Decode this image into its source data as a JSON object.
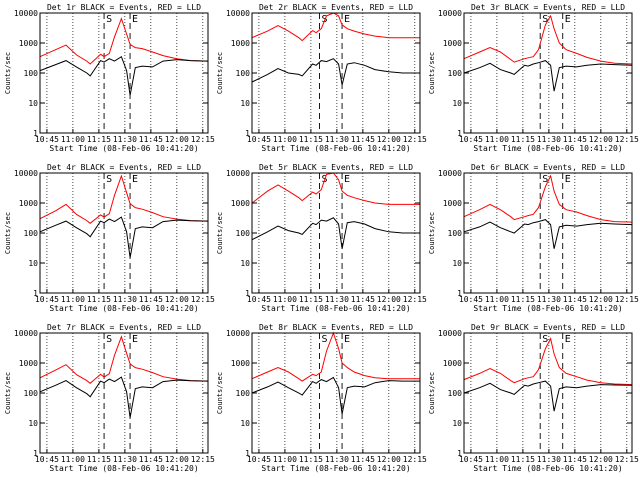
{
  "xlabel": "Start Time (08-Feb-06 10:41:20)",
  "ylabel": "Counts/sec",
  "x_ticks": [
    "10:45",
    "11:00",
    "11:15",
    "11:30",
    "11:45",
    "12:00",
    "12:15"
  ],
  "y_ticks": [
    "1",
    "10",
    "100",
    "1000",
    "10000"
  ],
  "marker_s": "S",
  "marker_e": "E",
  "colors": {
    "events": "#000000",
    "lld": "#ff0000"
  },
  "chart_data": [
    {
      "type": "line",
      "title": "Det 1r BLACK = Events, RED = LLD",
      "xlim": [
        "10:41",
        "12:18"
      ],
      "ylim": [
        1,
        10000
      ],
      "yscale": "log",
      "grid": "dotted-vertical",
      "s_time": "11:18",
      "e_time": "11:33",
      "x": [
        "10:41",
        "10:50",
        "10:56",
        "11:02",
        "11:08",
        "11:10",
        "11:16",
        "11:18",
        "11:21",
        "11:24",
        "11:28",
        "11:31",
        "11:33",
        "11:36",
        "11:40",
        "11:46",
        "11:52",
        "12:00",
        "12:08",
        "12:18"
      ],
      "series": [
        {
          "name": "LLD",
          "values": [
            350,
            600,
            850,
            400,
            250,
            200,
            420,
            350,
            450,
            1600,
            6500,
            2000,
            900,
            700,
            650,
            500,
            380,
            300,
            260,
            250
          ]
        },
        {
          "name": "Events",
          "values": [
            120,
            190,
            260,
            160,
            100,
            80,
            260,
            230,
            300,
            250,
            350,
            120,
            18,
            150,
            170,
            160,
            250,
            280,
            260,
            250
          ]
        }
      ]
    },
    {
      "type": "line",
      "title": "Det 2r BLACK = Events, RED = LLD",
      "xlim": [
        "10:41",
        "12:18"
      ],
      "ylim": [
        1,
        10000
      ],
      "yscale": "log",
      "grid": "dotted-vertical",
      "s_time": "11:20",
      "e_time": "11:33",
      "x": [
        "10:41",
        "10:50",
        "10:56",
        "11:02",
        "11:08",
        "11:10",
        "11:16",
        "11:18",
        "11:21",
        "11:24",
        "11:28",
        "11:31",
        "11:33",
        "11:36",
        "11:40",
        "11:46",
        "11:52",
        "12:00",
        "12:08",
        "12:18"
      ],
      "series": [
        {
          "name": "LLD",
          "values": [
            1500,
            2500,
            3800,
            2500,
            1500,
            1200,
            2600,
            2200,
            3000,
            8000,
            10000,
            8000,
            4000,
            3000,
            2500,
            2000,
            1700,
            1500,
            1500,
            1500
          ]
        },
        {
          "name": "Events",
          "values": [
            50,
            90,
            140,
            100,
            90,
            80,
            200,
            180,
            260,
            240,
            300,
            200,
            40,
            200,
            220,
            180,
            130,
            110,
            100,
            100
          ]
        }
      ]
    },
    {
      "type": "line",
      "title": "Det 3r BLACK = Events, RED = LLD",
      "xlim": [
        "10:41",
        "12:18"
      ],
      "ylim": [
        1,
        10000
      ],
      "yscale": "log",
      "grid": "dotted-vertical",
      "s_time": "11:25",
      "e_time": "11:38",
      "x": [
        "10:41",
        "10:50",
        "10:56",
        "11:02",
        "11:08",
        "11:10",
        "11:16",
        "11:18",
        "11:21",
        "11:24",
        "11:28",
        "11:31",
        "11:33",
        "11:36",
        "11:40",
        "11:46",
        "11:52",
        "12:00",
        "12:08",
        "12:18"
      ],
      "series": [
        {
          "name": "LLD",
          "values": [
            300,
            500,
            700,
            500,
            280,
            230,
            300,
            320,
            350,
            600,
            4000,
            8000,
            3000,
            1000,
            600,
            450,
            330,
            250,
            210,
            200
          ]
        },
        {
          "name": "Events",
          "values": [
            100,
            150,
            210,
            130,
            100,
            90,
            180,
            170,
            200,
            220,
            260,
            180,
            25,
            150,
            170,
            160,
            180,
            200,
            190,
            180
          ]
        }
      ]
    },
    {
      "type": "line",
      "title": "Det 4r BLACK = Events, RED = LLD",
      "xlim": [
        "10:41",
        "12:18"
      ],
      "ylim": [
        1,
        10000
      ],
      "yscale": "log",
      "grid": "dotted-vertical",
      "s_time": "11:18",
      "e_time": "11:33",
      "x": [
        "10:41",
        "10:50",
        "10:56",
        "11:02",
        "11:08",
        "11:10",
        "11:16",
        "11:18",
        "11:21",
        "11:24",
        "11:28",
        "11:31",
        "11:33",
        "11:36",
        "11:40",
        "11:46",
        "11:52",
        "12:00",
        "12:08",
        "12:18"
      ],
      "series": [
        {
          "name": "LLD",
          "values": [
            300,
            550,
            900,
            420,
            260,
            210,
            400,
            340,
            440,
            1800,
            8000,
            2200,
            950,
            700,
            620,
            480,
            350,
            290,
            260,
            250
          ]
        },
        {
          "name": "Events",
          "values": [
            110,
            180,
            250,
            150,
            95,
            75,
            250,
            220,
            290,
            240,
            340,
            110,
            15,
            140,
            160,
            150,
            240,
            270,
            255,
            250
          ]
        }
      ]
    },
    {
      "type": "line",
      "title": "Det 5r BLACK = Events, RED = LLD",
      "xlim": [
        "10:41",
        "12:18"
      ],
      "ylim": [
        1,
        10000
      ],
      "yscale": "log",
      "grid": "dotted-vertical",
      "s_time": "11:20",
      "e_time": "11:33",
      "x": [
        "10:41",
        "10:50",
        "10:56",
        "11:02",
        "11:08",
        "11:10",
        "11:16",
        "11:18",
        "11:21",
        "11:24",
        "11:28",
        "11:31",
        "11:33",
        "11:36",
        "11:40",
        "11:46",
        "11:52",
        "12:00",
        "12:08",
        "12:18"
      ],
      "series": [
        {
          "name": "LLD",
          "values": [
            1000,
            2500,
            4000,
            2500,
            1500,
            1200,
            2300,
            2000,
            2800,
            9000,
            10000,
            6000,
            2500,
            1800,
            1500,
            1200,
            1000,
            900,
            900,
            900
          ]
        },
        {
          "name": "Events",
          "values": [
            60,
            110,
            170,
            120,
            100,
            90,
            210,
            190,
            270,
            250,
            320,
            200,
            30,
            220,
            240,
            200,
            140,
            110,
            100,
            100
          ]
        }
      ]
    },
    {
      "type": "line",
      "title": "Det 6r BLACK = Events, RED = LLD",
      "xlim": [
        "10:41",
        "12:18"
      ],
      "ylim": [
        1,
        10000
      ],
      "yscale": "log",
      "grid": "dotted-vertical",
      "s_time": "11:25",
      "e_time": "11:38",
      "x": [
        "10:41",
        "10:50",
        "10:56",
        "11:02",
        "11:08",
        "11:10",
        "11:16",
        "11:18",
        "11:21",
        "11:24",
        "11:28",
        "11:31",
        "11:33",
        "11:36",
        "11:40",
        "11:46",
        "11:52",
        "12:00",
        "12:08",
        "12:18"
      ],
      "series": [
        {
          "name": "LLD",
          "values": [
            350,
            600,
            900,
            600,
            350,
            280,
            350,
            380,
            420,
            700,
            3500,
            8000,
            2500,
            900,
            600,
            500,
            380,
            280,
            240,
            230
          ]
        },
        {
          "name": "Events",
          "values": [
            110,
            160,
            230,
            150,
            110,
            100,
            200,
            190,
            220,
            240,
            280,
            190,
            30,
            160,
            180,
            170,
            190,
            210,
            200,
            190
          ]
        }
      ]
    },
    {
      "type": "line",
      "title": "Det 7r BLACK = Events, RED = LLD",
      "xlim": [
        "10:41",
        "12:18"
      ],
      "ylim": [
        1,
        10000
      ],
      "yscale": "log",
      "grid": "dotted-vertical",
      "s_time": "11:18",
      "e_time": "11:33",
      "x": [
        "10:41",
        "10:50",
        "10:56",
        "11:02",
        "11:08",
        "11:10",
        "11:16",
        "11:18",
        "11:21",
        "11:24",
        "11:28",
        "11:31",
        "11:33",
        "11:36",
        "11:40",
        "11:46",
        "11:52",
        "12:00",
        "12:08",
        "12:18"
      ],
      "series": [
        {
          "name": "LLD",
          "values": [
            320,
            580,
            880,
            410,
            260,
            210,
            420,
            340,
            440,
            1800,
            7500,
            2100,
            930,
            700,
            620,
            480,
            350,
            290,
            260,
            250
          ]
        },
        {
          "name": "Events",
          "values": [
            110,
            180,
            260,
            150,
            95,
            75,
            250,
            220,
            290,
            240,
            340,
            110,
            15,
            140,
            160,
            150,
            240,
            270,
            255,
            250
          ]
        }
      ]
    },
    {
      "type": "line",
      "title": "Det 8r BLACK = Events, RED = LLD",
      "xlim": [
        "10:41",
        "12:18"
      ],
      "ylim": [
        1,
        10000
      ],
      "yscale": "log",
      "grid": "dotted-vertical",
      "s_time": "11:20",
      "e_time": "11:33",
      "x": [
        "10:41",
        "10:50",
        "10:56",
        "11:02",
        "11:08",
        "11:10",
        "11:16",
        "11:18",
        "11:21",
        "11:24",
        "11:28",
        "11:31",
        "11:33",
        "11:36",
        "11:40",
        "11:46",
        "11:52",
        "12:00",
        "12:08",
        "12:18"
      ],
      "series": [
        {
          "name": "LLD",
          "values": [
            300,
            500,
            700,
            500,
            300,
            250,
            420,
            380,
            500,
            2500,
            10000,
            3000,
            1000,
            700,
            500,
            380,
            320,
            300,
            300,
            300
          ]
        },
        {
          "name": "Events",
          "values": [
            100,
            160,
            230,
            150,
            100,
            85,
            240,
            210,
            280,
            240,
            330,
            150,
            20,
            150,
            170,
            160,
            220,
            260,
            250,
            250
          ]
        }
      ]
    },
    {
      "type": "line",
      "title": "Det 9r BLACK = Events, RED = LLD",
      "xlim": [
        "10:41",
        "12:18"
      ],
      "ylim": [
        1,
        10000
      ],
      "yscale": "log",
      "grid": "dotted-vertical",
      "s_time": "11:25",
      "e_time": "11:38",
      "x": [
        "10:41",
        "10:50",
        "10:56",
        "11:02",
        "11:08",
        "11:10",
        "11:16",
        "11:18",
        "11:21",
        "11:24",
        "11:28",
        "11:31",
        "11:33",
        "11:36",
        "11:40",
        "11:46",
        "11:52",
        "12:00",
        "12:08",
        "12:18"
      ],
      "series": [
        {
          "name": "LLD",
          "values": [
            280,
            450,
            650,
            450,
            260,
            220,
            300,
            320,
            350,
            600,
            3000,
            6500,
            2000,
            700,
            450,
            350,
            270,
            220,
            200,
            190
          ]
        },
        {
          "name": "Events",
          "values": [
            100,
            150,
            210,
            130,
            100,
            90,
            180,
            170,
            200,
            220,
            250,
            170,
            25,
            140,
            160,
            150,
            170,
            190,
            185,
            180
          ]
        }
      ]
    }
  ]
}
